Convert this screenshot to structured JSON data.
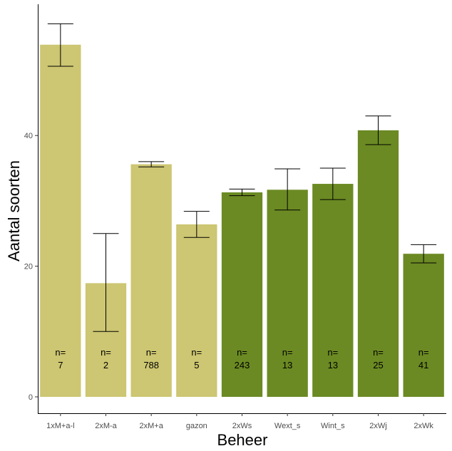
{
  "chart_data": {
    "type": "bar",
    "xlabel": "Beheer",
    "ylabel": "Aantal soorten",
    "ylim": [
      0,
      58.5
    ],
    "yticks": [
      0,
      20,
      40
    ],
    "grid": false,
    "categories": [
      "1xM+a-l",
      "2xM-a",
      "2xM+a",
      "gazon",
      "2xWs",
      "Wext_s",
      "Wint_s",
      "2xWj",
      "2xWk"
    ],
    "values": [
      53.9,
      17.4,
      35.6,
      26.4,
      31.3,
      31.7,
      32.6,
      40.8,
      21.9
    ],
    "error_low": [
      50.6,
      10.0,
      35.2,
      24.4,
      30.8,
      28.6,
      30.2,
      38.6,
      20.5
    ],
    "error_high": [
      57.1,
      25.0,
      36.0,
      28.4,
      31.8,
      34.9,
      35.0,
      43.0,
      23.3
    ],
    "n_prefix": "n=",
    "n_values": [
      "7",
      "2",
      "788",
      "5",
      "243",
      "13",
      "13",
      "25",
      "41"
    ],
    "groups": [
      "light",
      "light",
      "light",
      "light",
      "dark",
      "dark",
      "dark",
      "dark",
      "dark"
    ],
    "colors": {
      "light": "#cdc672",
      "dark": "#6b8a23"
    }
  }
}
